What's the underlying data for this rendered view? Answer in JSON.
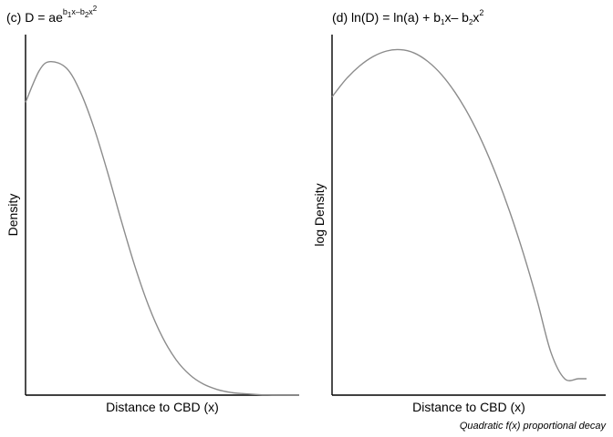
{
  "chart_data": [
    {
      "type": "line",
      "panel": "(c)",
      "title_parts": {
        "prefix": "(c) D = ae",
        "exp_b1": "b",
        "exp_b1_sub": "1",
        "exp_mid": "x–b",
        "exp_b2_sub": "2",
        "exp_end": "x",
        "exp_pow": "2"
      },
      "xlabel": "Distance to CBD (x)",
      "ylabel": "Density",
      "xlim": [
        0,
        10
      ],
      "ylim": [
        0,
        1.08
      ],
      "series": [
        {
          "color": "#8c8c8c",
          "x": [
            0,
            0.5,
            0.9,
            1.5,
            2,
            2.5,
            3,
            3.5,
            4,
            4.5,
            5,
            5.5,
            6,
            6.5,
            7,
            7.5,
            8,
            8.5,
            9,
            9.5,
            10
          ],
          "y": [
            0.877,
            0.972,
            0.999,
            0.979,
            0.909,
            0.801,
            0.667,
            0.522,
            0.385,
            0.267,
            0.174,
            0.106,
            0.061,
            0.033,
            0.017,
            0.008,
            0.004,
            0.0015,
            0.0006,
            0.0002,
            0.0001
          ]
        }
      ],
      "axes": {
        "left": true,
        "bottom": true,
        "ticks": false,
        "grid": false
      }
    },
    {
      "type": "line",
      "panel": "(d)",
      "title_parts": {
        "prefix": "(d) ln(D) = ln(a) + b",
        "b1_sub": "1",
        "mid": "x– b",
        "b2_sub": "2",
        "end": "x",
        "pow": "2"
      },
      "xlabel": "Distance to CBD (x)",
      "ylabel": "log Density",
      "xlim": [
        0,
        10
      ],
      "ylim": [
        -1.05,
        0.05
      ],
      "series": [
        {
          "color": "#8c8c8c",
          "x": [
            0,
            0.5,
            1,
            1.5,
            2,
            2.5,
            3,
            3.5,
            4,
            4.5,
            5,
            5.5,
            6,
            6.5,
            7,
            7.5,
            8,
            8.5,
            9,
            9.3
          ],
          "y": [
            -0.14,
            -0.087,
            -0.046,
            -0.017,
            0.0,
            0.004,
            -0.006,
            -0.032,
            -0.072,
            -0.127,
            -0.196,
            -0.28,
            -0.379,
            -0.492,
            -0.62,
            -0.763,
            -0.92,
            -1.0,
            -1.0,
            -1.0
          ]
        }
      ],
      "axes": {
        "left": true,
        "bottom": true,
        "ticks": false,
        "grid": false
      }
    }
  ],
  "caption": "Quadratic f(x) proportional decay"
}
